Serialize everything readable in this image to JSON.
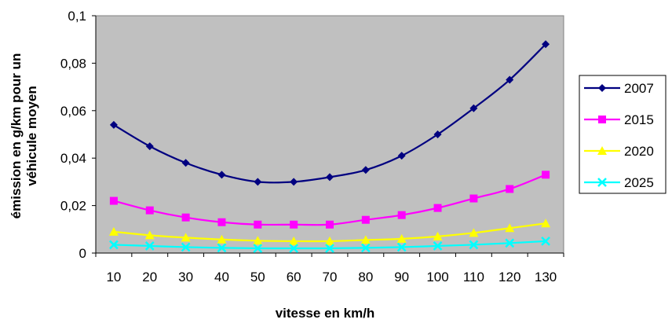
{
  "chart_data": {
    "type": "line",
    "title": "",
    "xlabel": "vitesse en km/h",
    "ylabel_lines": [
      "émission en g/km pour un",
      "véhicule moyen"
    ],
    "x": [
      10,
      20,
      30,
      40,
      50,
      60,
      70,
      80,
      90,
      100,
      110,
      120,
      130
    ],
    "x_tick_labels": [
      "10",
      "20",
      "30",
      "40",
      "50",
      "60",
      "70",
      "80",
      "90",
      "100",
      "110",
      "120",
      "130"
    ],
    "ylim": [
      0,
      0.1
    ],
    "y_tick_values": [
      0,
      0.02,
      0.04,
      0.06,
      0.08,
      0.1
    ],
    "y_tick_labels": [
      "0",
      "0,02",
      "0,04",
      "0,06",
      "0,08",
      "0,1"
    ],
    "grid": false,
    "plot_background": "#c0c0c0",
    "legend_position": "right",
    "series": [
      {
        "name": "2007",
        "color": "#000080",
        "marker": "diamond",
        "values": [
          0.054,
          0.045,
          0.038,
          0.033,
          0.03,
          0.03,
          0.032,
          0.035,
          0.041,
          0.05,
          0.061,
          0.073,
          0.088
        ]
      },
      {
        "name": "2015",
        "color": "#ff00ff",
        "marker": "square",
        "values": [
          0.022,
          0.018,
          0.015,
          0.013,
          0.012,
          0.012,
          0.012,
          0.014,
          0.016,
          0.019,
          0.023,
          0.027,
          0.033
        ]
      },
      {
        "name": "2020",
        "color": "#ffff00",
        "marker": "triangle",
        "values": [
          0.009,
          0.0075,
          0.0065,
          0.0057,
          0.0052,
          0.005,
          0.005,
          0.0055,
          0.006,
          0.007,
          0.0085,
          0.0105,
          0.0125
        ]
      },
      {
        "name": "2025",
        "color": "#00ffff",
        "marker": "x",
        "values": [
          0.0035,
          0.003,
          0.0025,
          0.0022,
          0.002,
          0.002,
          0.002,
          0.0022,
          0.0025,
          0.003,
          0.0035,
          0.0042,
          0.005
        ]
      }
    ]
  }
}
